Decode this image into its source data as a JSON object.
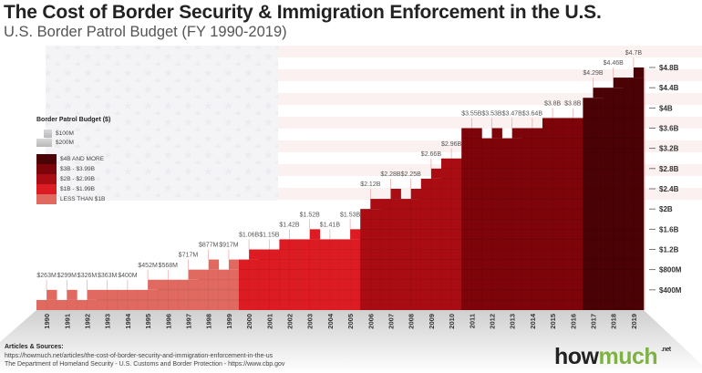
{
  "header": {
    "title": "The Cost of Border Security & Immigration Enforcement in the U.S.",
    "subtitle": "U.S. Border Patrol Budget (FY 1990-2019)"
  },
  "legend": {
    "title": "Border Patrol Budget ($)",
    "size_items": [
      {
        "label": "$100M"
      },
      {
        "label": "$200M"
      }
    ],
    "color_items": [
      {
        "label": "$4B AND MORE",
        "color": "#4a0205"
      },
      {
        "label": "$3B - $3.99B",
        "color": "#7d0408"
      },
      {
        "label": "$2B - $2.99B",
        "color": "#a90c12"
      },
      {
        "label": "$1B - $1.99B",
        "color": "#dc1c22"
      },
      {
        "label": "LESS THAN $1B",
        "color": "#e06a60"
      }
    ]
  },
  "chart_data": {
    "type": "bar",
    "title": "U.S. Border Patrol Budget (FY 1990-2019)",
    "xlabel": "",
    "ylabel": "",
    "ylim": [
      0,
      4.8
    ],
    "y_unit": "billion USD",
    "categories": [
      "1990",
      "1991",
      "1992",
      "1993",
      "1994",
      "1995",
      "1996",
      "1997",
      "1998",
      "1999",
      "2000",
      "2001",
      "2002",
      "2003",
      "2004",
      "2005",
      "2006",
      "2007",
      "2008",
      "2009",
      "2010",
      "2011",
      "2012",
      "2013",
      "2014",
      "2015",
      "2016",
      "2017",
      "2018",
      "2019"
    ],
    "values": [
      0.263,
      0.299,
      0.326,
      0.363,
      0.4,
      0.452,
      0.568,
      0.717,
      0.877,
      0.917,
      1.06,
      1.15,
      1.42,
      1.52,
      1.41,
      1.53,
      2.12,
      2.28,
      2.25,
      2.66,
      2.96,
      3.55,
      3.53,
      3.47,
      3.64,
      3.8,
      3.8,
      4.29,
      4.46,
      4.7
    ],
    "data_labels": [
      "$263M",
      "$299M",
      "$326M",
      "$363M",
      "$400M",
      "$452M",
      "$568M",
      "$717M",
      "$877M",
      "$917M",
      "$1.06B",
      "$1.15B",
      "$1.42B",
      "$1.52B",
      "$1.41B",
      "$1.53B",
      "$2.12B",
      "$2.28B",
      "$2.25B",
      "$2.66B",
      "$2.96B",
      "$3.55B",
      "$3.53B",
      "$3.47B",
      "$3.64B",
      "$3.8B",
      "$3.8B",
      "$4.29B",
      "$4.46B",
      "$4.7B"
    ],
    "y_ticks": [
      {
        "value": 0.4,
        "label": "$400M"
      },
      {
        "value": 0.8,
        "label": "$800M"
      },
      {
        "value": 1.2,
        "label": "$1.2B"
      },
      {
        "value": 1.6,
        "label": "$1.6B"
      },
      {
        "value": 2.0,
        "label": "$2B"
      },
      {
        "value": 2.4,
        "label": "$2.4B"
      },
      {
        "value": 2.8,
        "label": "$2.8B"
      },
      {
        "value": 3.2,
        "label": "$3.2B"
      },
      {
        "value": 3.6,
        "label": "$3.6B"
      },
      {
        "value": 4.0,
        "label": "$4B"
      },
      {
        "value": 4.4,
        "label": "$4.4B"
      },
      {
        "value": 4.8,
        "label": "$4.8B"
      }
    ],
    "axis_position": "right",
    "grid": false,
    "legend_position": "left"
  },
  "sources": {
    "title": "Articles & Sources:",
    "lines": [
      "https://howmuch.net/articles/the-cost-of-border-security-and-immigration-enforcement-in-the-us",
      "The Department of Homeland Security - U.S. Customs and Border Protection - https://www.cbp.gov"
    ]
  },
  "brand": {
    "how": "how",
    "much": "much",
    "net": ".net"
  }
}
